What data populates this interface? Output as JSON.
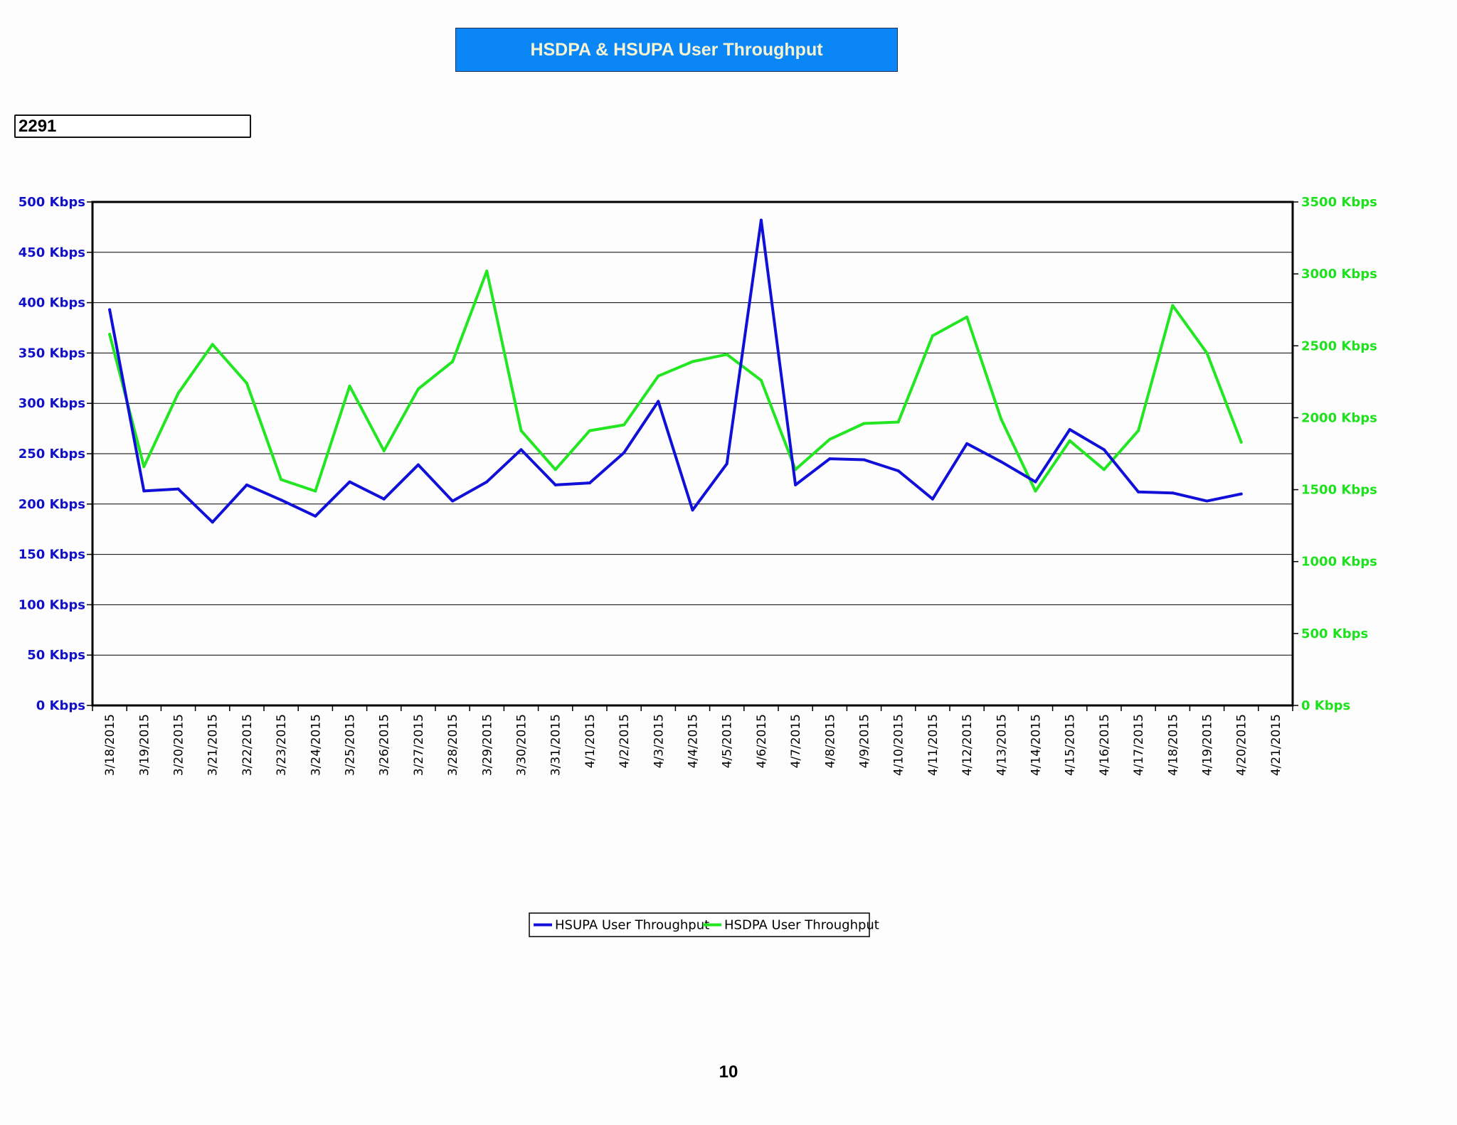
{
  "header": {
    "title": "HSDPA & HSUPA User Throughput"
  },
  "site": {
    "id": "2291"
  },
  "footer": {
    "page_number": "10"
  },
  "colors": {
    "hsupa": "#1010d8",
    "hsdpa": "#22e622",
    "title_bg": "#0a86f7",
    "title_text": "#f5f3d0"
  },
  "chart_data": {
    "type": "line",
    "title": "HSDPA & HSUPA User Throughput",
    "xlabel": "",
    "categories": [
      "3/18/2015",
      "3/19/2015",
      "3/20/2015",
      "3/21/2015",
      "3/22/2015",
      "3/23/2015",
      "3/24/2015",
      "3/25/2015",
      "3/26/2015",
      "3/27/2015",
      "3/28/2015",
      "3/29/2015",
      "3/30/2015",
      "3/31/2015",
      "4/1/2015",
      "4/2/2015",
      "4/3/2015",
      "4/4/2015",
      "4/5/2015",
      "4/6/2015",
      "4/7/2015",
      "4/8/2015",
      "4/9/2015",
      "4/10/2015",
      "4/11/2015",
      "4/12/2015",
      "4/13/2015",
      "4/14/2015",
      "4/15/2015",
      "4/16/2015",
      "4/17/2015",
      "4/18/2015",
      "4/19/2015",
      "4/20/2015",
      "4/21/2015"
    ],
    "y_left": {
      "ylim": [
        0,
        500
      ],
      "ticks": [
        {
          "value": 0,
          "label": "0 Kbps"
        },
        {
          "value": 50,
          "label": "50 Kbps"
        },
        {
          "value": 100,
          "label": "100 Kbps"
        },
        {
          "value": 150,
          "label": "150 Kbps"
        },
        {
          "value": 200,
          "label": "200 Kbps"
        },
        {
          "value": 250,
          "label": "250 Kbps"
        },
        {
          "value": 300,
          "label": "300 Kbps"
        },
        {
          "value": 350,
          "label": "350 Kbps"
        },
        {
          "value": 400,
          "label": "400 Kbps"
        },
        {
          "value": 450,
          "label": "450 Kbps"
        },
        {
          "value": 500,
          "label": "500 Kbps"
        }
      ]
    },
    "y_right": {
      "ylim": [
        0,
        3500
      ],
      "ticks": [
        {
          "value": 0,
          "label": "0 Kbps"
        },
        {
          "value": 500,
          "label": "500 Kbps"
        },
        {
          "value": 1000,
          "label": "1000 Kbps"
        },
        {
          "value": 1500,
          "label": "1500 Kbps"
        },
        {
          "value": 2000,
          "label": "2000 Kbps"
        },
        {
          "value": 2500,
          "label": "2500 Kbps"
        },
        {
          "value": 3000,
          "label": "3000 Kbps"
        },
        {
          "value": 3500,
          "label": "3500 Kbps"
        }
      ]
    },
    "grid": true,
    "legend_position": "bottom-center",
    "series": [
      {
        "name": "HSUPA User Throughput",
        "axis": "left",
        "color": "#1010d8",
        "values": [
          393,
          213,
          215,
          182,
          219,
          204,
          188,
          222,
          205,
          239,
          203,
          222,
          254,
          219,
          221,
          251,
          302,
          194,
          240,
          482,
          219,
          245,
          244,
          233,
          205,
          260,
          242,
          222,
          274,
          254,
          212,
          211,
          203,
          210,
          null
        ]
      },
      {
        "name": "HSDPA User Throughput",
        "axis": "right",
        "color": "#22e622",
        "values": [
          2580,
          1660,
          2170,
          2510,
          2240,
          1570,
          1490,
          2220,
          1770,
          2200,
          2390,
          3020,
          1910,
          1640,
          1910,
          1950,
          2290,
          2390,
          2440,
          2260,
          1640,
          1850,
          1960,
          1970,
          2570,
          2700,
          1990,
          1490,
          1840,
          1640,
          1910,
          2780,
          2450,
          1830,
          null
        ]
      }
    ]
  }
}
